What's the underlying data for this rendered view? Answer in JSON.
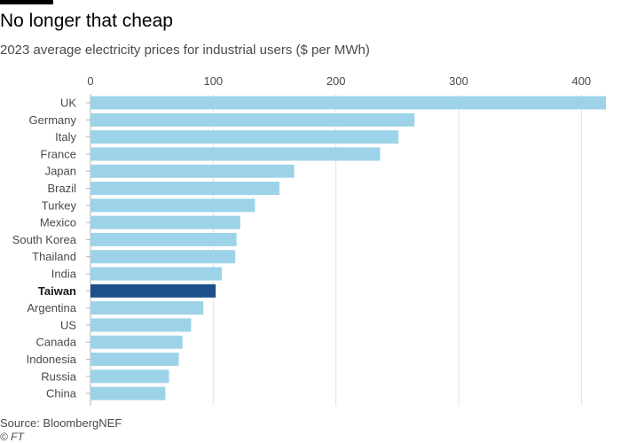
{
  "header": {
    "title": "No longer that cheap",
    "subtitle": "2023 average electricity prices for industrial users ($ per MWh)"
  },
  "footer": {
    "source": "Source: BloombergNEF",
    "credit": "© FT"
  },
  "colors": {
    "bar": "#9dd3e9",
    "highlight": "#1d4f8a",
    "grid": "#e6e2dd",
    "axis": "#b8b3ad"
  },
  "chart_data": {
    "type": "bar",
    "orientation": "horizontal",
    "title": "No longer that cheap",
    "xlabel": "",
    "ylabel": "",
    "xlim": [
      0,
      420
    ],
    "xticks": [
      0,
      100,
      200,
      300,
      400
    ],
    "highlight": "Taiwan",
    "categories": [
      "UK",
      "Germany",
      "Italy",
      "France",
      "Japan",
      "Brazil",
      "Turkey",
      "Mexico",
      "South Korea",
      "Thailand",
      "India",
      "Taiwan",
      "Argentina",
      "US",
      "Canada",
      "Indonesia",
      "Russia",
      "China"
    ],
    "values": [
      420,
      264,
      251,
      236,
      166,
      154,
      134,
      122,
      119,
      118,
      107,
      102,
      92,
      82,
      75,
      72,
      64,
      61
    ]
  }
}
